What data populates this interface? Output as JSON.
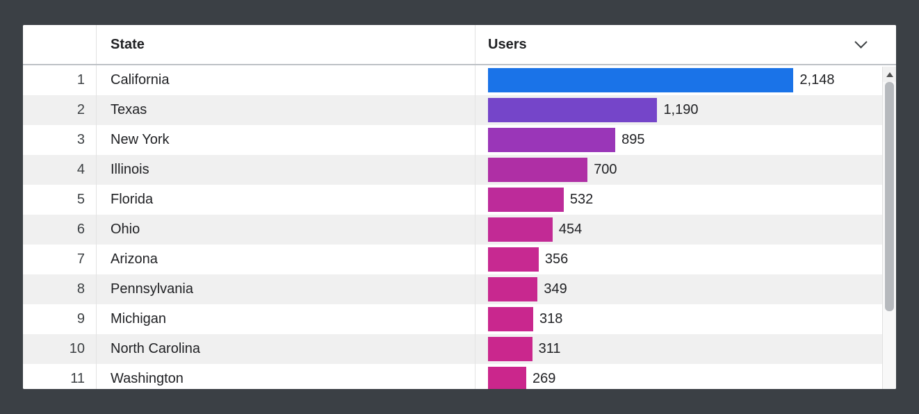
{
  "frame": {
    "background_color": "#3b4045",
    "card_background": "#ffffff"
  },
  "table": {
    "columns": {
      "index_header": "",
      "state_header": "State",
      "users_header": "Users"
    },
    "rows": [
      {
        "index": "1",
        "state": "California",
        "users_label": "2,148",
        "value": 2148,
        "bar_color": "#1a73e8"
      },
      {
        "index": "2",
        "state": "Texas",
        "users_label": "1,190",
        "value": 1190,
        "bar_color": "#7545c9"
      },
      {
        "index": "3",
        "state": "New York",
        "users_label": "895",
        "value": 895,
        "bar_color": "#9a36b8"
      },
      {
        "index": "4",
        "state": "Illinois",
        "users_label": "700",
        "value": 700,
        "bar_color": "#af2fa5"
      },
      {
        "index": "5",
        "state": "Florida",
        "users_label": "532",
        "value": 532,
        "bar_color": "#bd2b9a"
      },
      {
        "index": "6",
        "state": "Ohio",
        "users_label": "454",
        "value": 454,
        "bar_color": "#c22a95"
      },
      {
        "index": "7",
        "state": "Arizona",
        "users_label": "356",
        "value": 356,
        "bar_color": "#c72991"
      },
      {
        "index": "8",
        "state": "Pennsylvania",
        "users_label": "349",
        "value": 349,
        "bar_color": "#c8288f"
      },
      {
        "index": "9",
        "state": "Michigan",
        "users_label": "318",
        "value": 318,
        "bar_color": "#c9278e"
      },
      {
        "index": "10",
        "state": "North Carolina",
        "users_label": "311",
        "value": 311,
        "bar_color": "#ca278d"
      },
      {
        "index": "11",
        "state": "Washington",
        "users_label": "269",
        "value": 269,
        "bar_color": "#cb268c"
      }
    ]
  },
  "icons": {
    "sort_chevron": "chevron-down",
    "scroll_up": "triangle-up"
  },
  "chart_data": {
    "type": "bar",
    "orientation": "horizontal",
    "title": "",
    "xlabel": "Users",
    "ylabel": "State",
    "categories": [
      "California",
      "Texas",
      "New York",
      "Illinois",
      "Florida",
      "Ohio",
      "Arizona",
      "Pennsylvania",
      "Michigan",
      "North Carolina",
      "Washington"
    ],
    "values": [
      2148,
      1190,
      895,
      700,
      532,
      454,
      356,
      349,
      318,
      311,
      269
    ],
    "value_labels": [
      "2,148",
      "1,190",
      "895",
      "700",
      "532",
      "454",
      "356",
      "349",
      "318",
      "311",
      "269"
    ],
    "xlim": [
      0,
      2148
    ],
    "grid": false,
    "legend": "none",
    "bar_colors": [
      "#1a73e8",
      "#7545c9",
      "#9a36b8",
      "#af2fa5",
      "#bd2b9a",
      "#c22a95",
      "#c72991",
      "#c8288f",
      "#c9278e",
      "#ca278d",
      "#cb268c"
    ],
    "row_striping": [
      "#ffffff",
      "#f0f0f0"
    ]
  }
}
